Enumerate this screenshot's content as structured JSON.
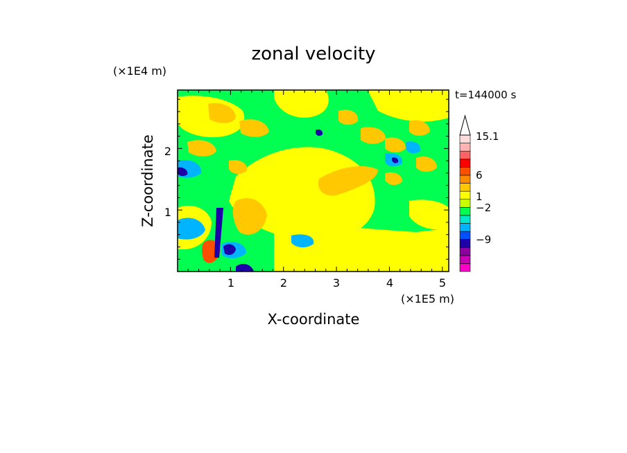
{
  "chart_data": {
    "type": "heatmap",
    "title": "zonal velocity",
    "xlabel": "X-coordinate",
    "ylabel": "Z-coordinate",
    "x_unit": "(×1E5 m)",
    "y_unit": "(×1E4 m)",
    "time_label": "t=144000 s",
    "xlim": [
      0,
      5.12
    ],
    "ylim": [
      0,
      2.95
    ],
    "x_ticks": [
      "1",
      "2",
      "3",
      "4",
      "5"
    ],
    "y_ticks": [
      "1",
      "2"
    ],
    "colorbar": {
      "labels": [
        "15.1",
        "6",
        "1",
        "−2",
        "−9"
      ],
      "levels": [
        -9,
        -2,
        1,
        6,
        15.1
      ],
      "colors": [
        "#ff00c8",
        "#c800b4",
        "#8c00a0",
        "#1e00a8",
        "#0050ff",
        "#00b4ff",
        "#00e6c8",
        "#00ff50",
        "#c8ff00",
        "#ffff00",
        "#ffc800",
        "#ff8c00",
        "#ff5000",
        "#ff0000",
        "#ff6464",
        "#ffb4b4",
        "#ffdcdc"
      ]
    },
    "colors": {
      "strong_negative": "#1e00a8",
      "negative": "#00b4ff",
      "near_zero": "#00ff50",
      "weak_positive": "#ffff00",
      "positive": "#ffc800",
      "strong_positive": "#ff5000"
    }
  }
}
